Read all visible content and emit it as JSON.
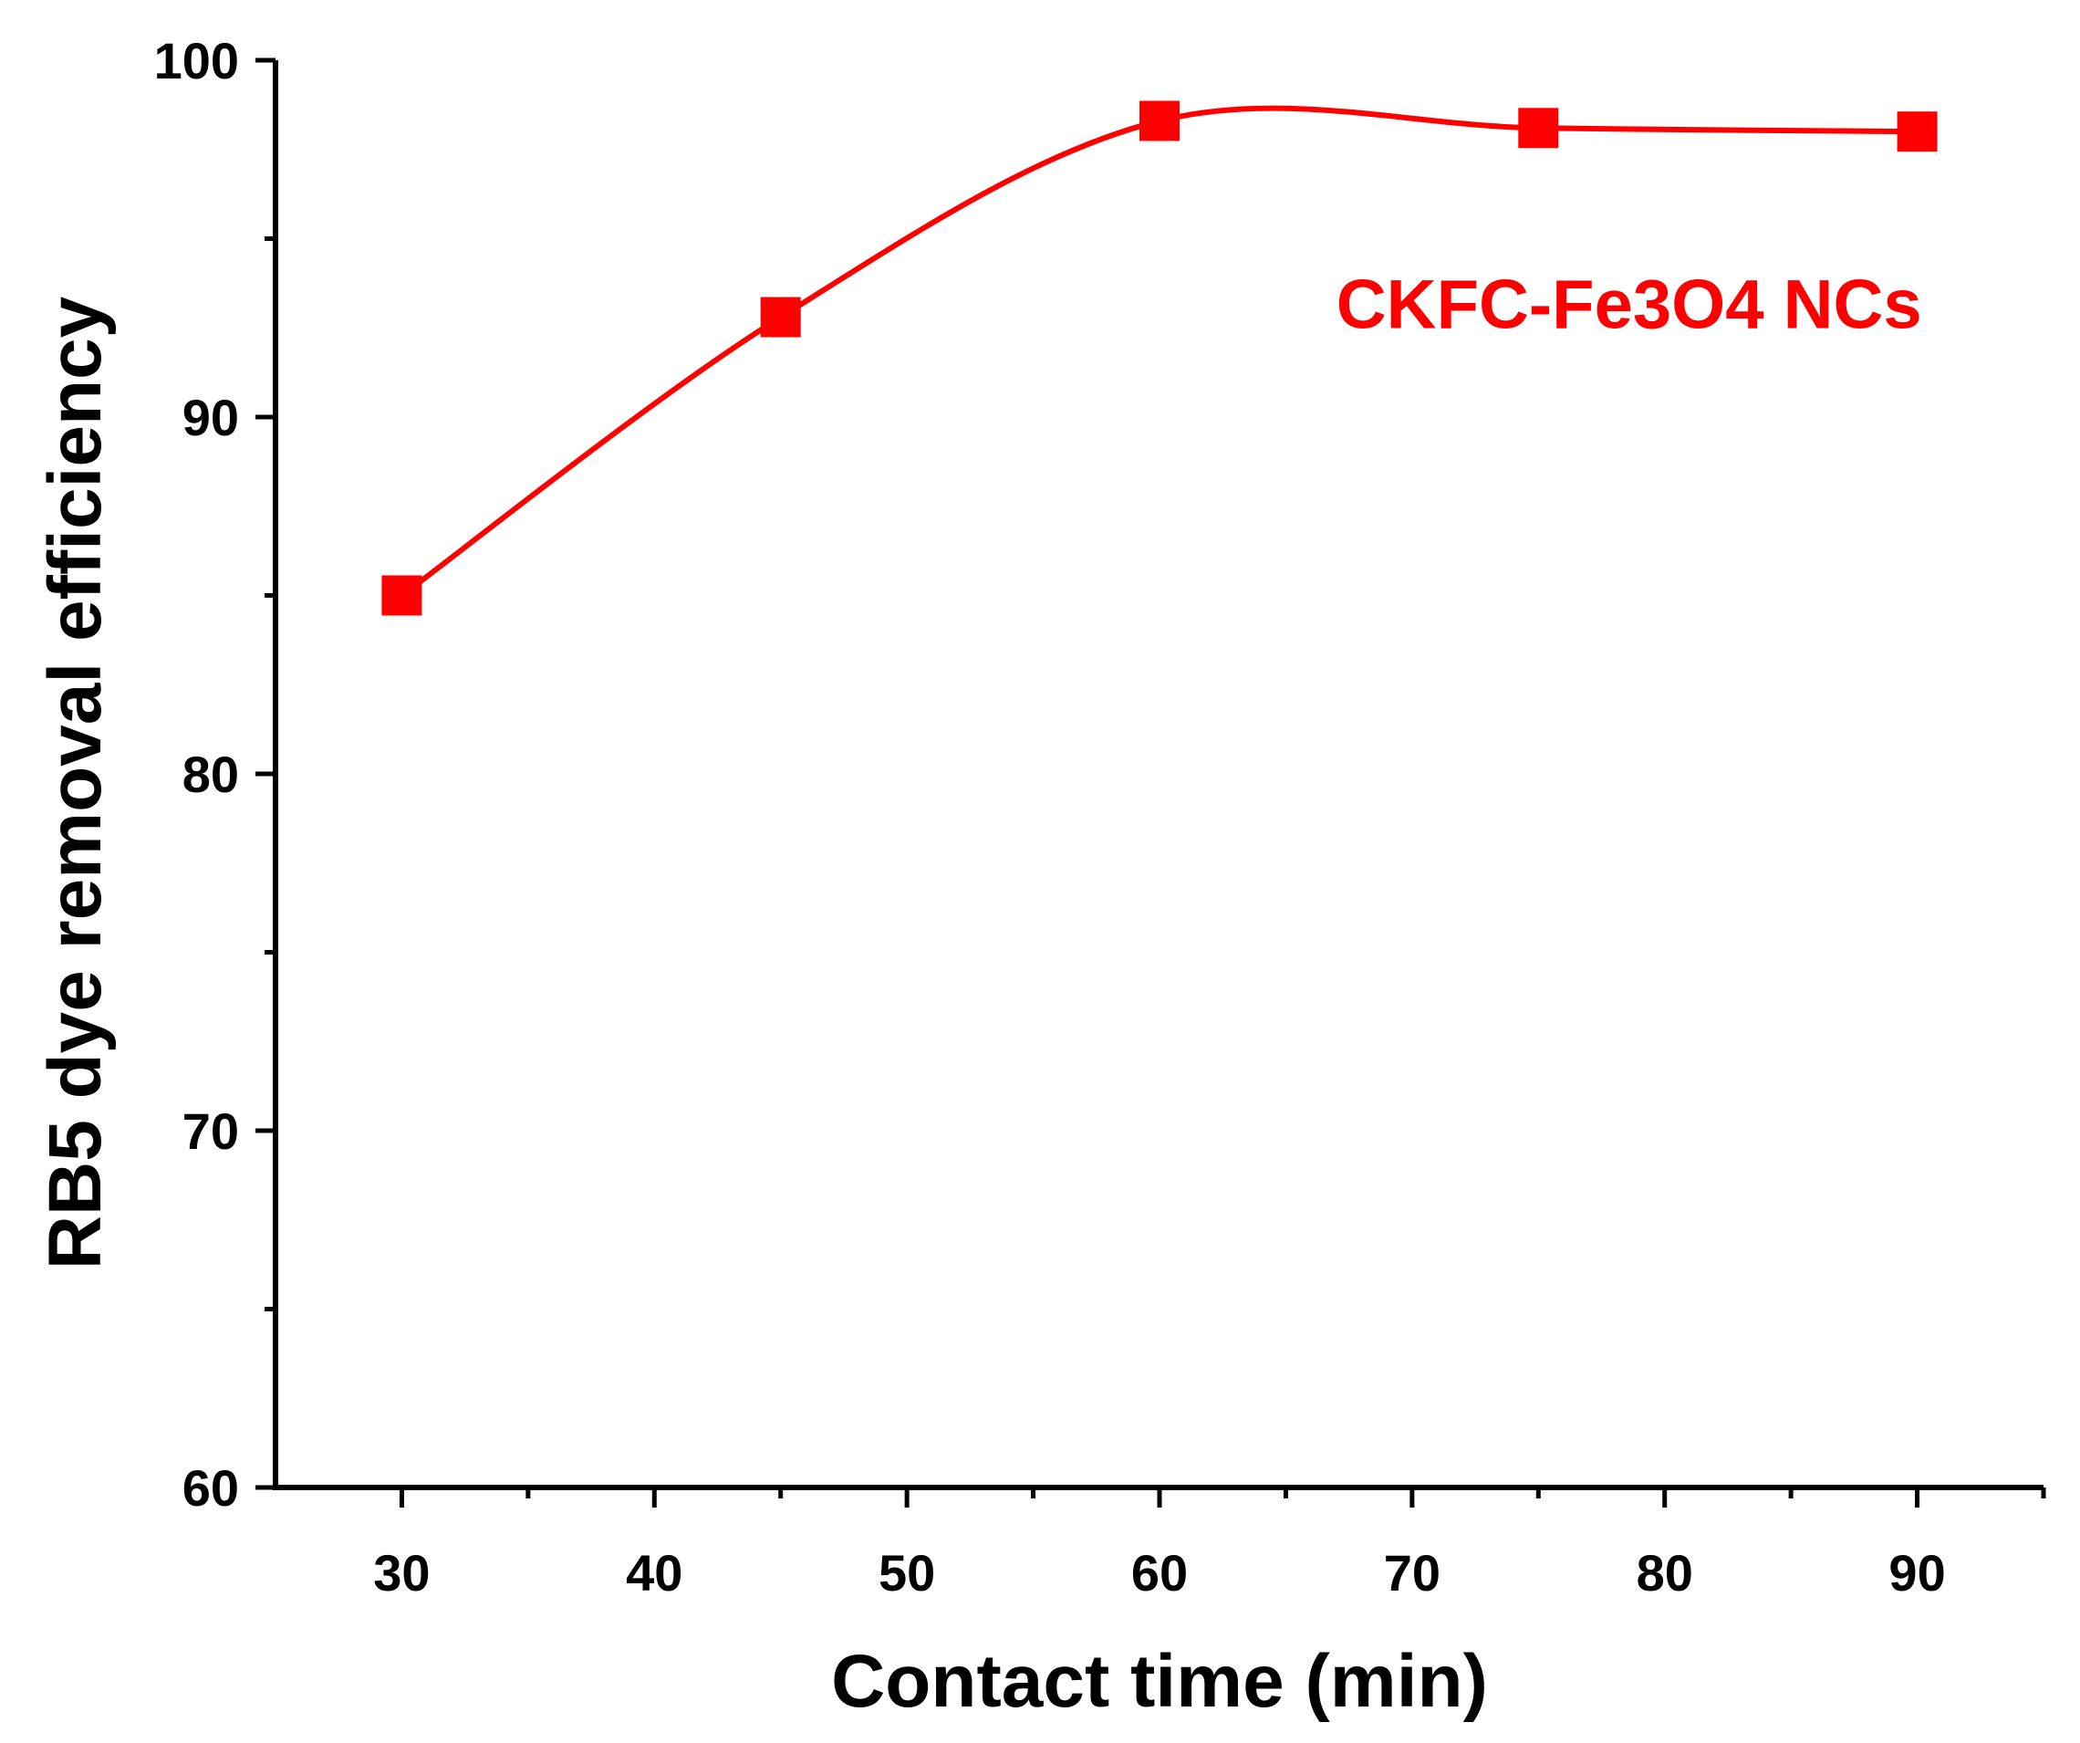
{
  "chart_data": {
    "type": "line",
    "xlabel": "Contact time (min)",
    "ylabel": "RB5 dye removal efficiency",
    "xlim": [
      25,
      95
    ],
    "ylim": [
      60,
      100
    ],
    "xticks": [
      30,
      40,
      50,
      60,
      70,
      80,
      90
    ],
    "xminor": [
      35,
      45,
      55,
      65,
      75,
      85,
      95
    ],
    "yticks": [
      60,
      70,
      80,
      90,
      100
    ],
    "yminor": [
      65,
      75,
      85,
      95
    ],
    "grid": false,
    "series": [
      {
        "name": "CKFC-Fe3O4 NCs",
        "color": "#ff0000",
        "marker": "square",
        "x": [
          30,
          45,
          60,
          75,
          90
        ],
        "y": [
          85.0,
          92.8,
          98.3,
          98.1,
          98.0
        ]
      }
    ],
    "annotations": [
      {
        "text": "CKFC-Fe3O4 NCs",
        "x": 67,
        "y": 92.5,
        "color": "#ff0000"
      }
    ]
  }
}
